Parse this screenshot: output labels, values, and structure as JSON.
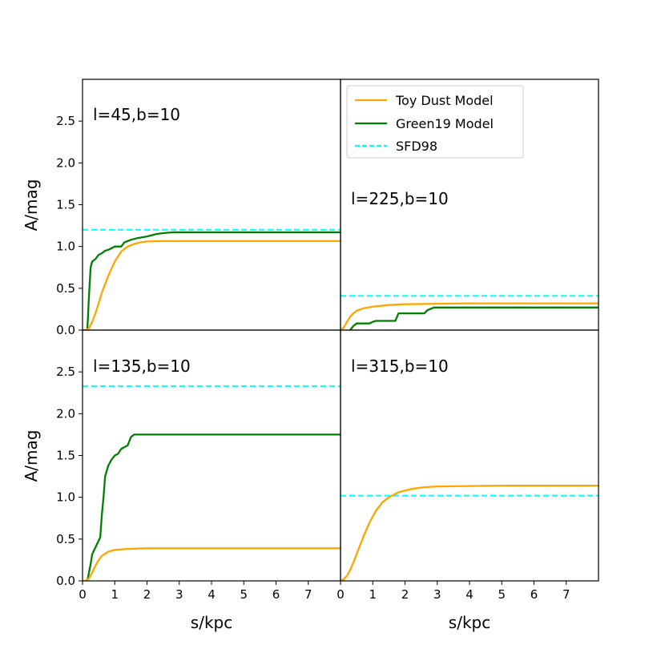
{
  "chart_data": {
    "type": "line",
    "layout": "2x2 grid, shared axes",
    "xlabel": "s/kpc",
    "ylabel": "A/mag",
    "xlim": [
      0,
      8
    ],
    "ylim": [
      0,
      3.0
    ],
    "xticks": [
      0,
      1,
      2,
      3,
      4,
      5,
      6,
      7
    ],
    "yticks": [
      0.0,
      0.5,
      1.0,
      1.5,
      2.0,
      2.5
    ],
    "legend": {
      "placement": "upper-left of top-right panel",
      "entries": [
        {
          "label": "Toy Dust Model",
          "color": "#ffa500",
          "style": "solid"
        },
        {
          "label": "Green19 Model",
          "color": "#008000",
          "style": "solid"
        },
        {
          "label": "SFD98",
          "color": "#00ffff",
          "style": "dashed"
        }
      ]
    },
    "panels": [
      {
        "label": "l=45,b=10",
        "sfd98": 1.2,
        "toy": {
          "x": [
            0,
            0.1,
            0.2,
            0.3,
            0.4,
            0.5,
            0.6,
            0.8,
            1.0,
            1.2,
            1.4,
            1.6,
            1.8,
            2.0,
            2.5,
            3.0,
            4.0,
            5.0,
            6.0,
            7.0,
            8.0
          ],
          "y": [
            0,
            0.0,
            0.02,
            0.1,
            0.2,
            0.32,
            0.45,
            0.65,
            0.82,
            0.94,
            1.0,
            1.03,
            1.05,
            1.06,
            1.065,
            1.065,
            1.065,
            1.065,
            1.065,
            1.065,
            1.065
          ]
        },
        "green": {
          "x": [
            0.15,
            0.2,
            0.25,
            0.3,
            0.4,
            0.5,
            0.6,
            0.7,
            0.8,
            0.9,
            1.0,
            1.2,
            1.3,
            1.5,
            1.7,
            2.0,
            2.3,
            2.5,
            2.8,
            3.0,
            8.0
          ],
          "y": [
            0.0,
            0.4,
            0.75,
            0.82,
            0.85,
            0.9,
            0.92,
            0.95,
            0.96,
            0.98,
            1.0,
            1.0,
            1.05,
            1.08,
            1.1,
            1.12,
            1.15,
            1.16,
            1.17,
            1.17,
            1.17
          ]
        }
      },
      {
        "label": "l=225,b=10",
        "sfd98": 0.41,
        "toy": {
          "x": [
            0,
            0.1,
            0.2,
            0.3,
            0.4,
            0.5,
            0.7,
            1.0,
            1.5,
            2.0,
            3.0,
            4.0,
            6.0,
            8.0
          ],
          "y": [
            0,
            0.03,
            0.1,
            0.16,
            0.2,
            0.23,
            0.26,
            0.28,
            0.3,
            0.31,
            0.315,
            0.32,
            0.32,
            0.32
          ]
        },
        "green": {
          "x": [
            0.3,
            0.4,
            0.5,
            0.9,
            1.0,
            1.1,
            1.7,
            1.8,
            2.6,
            2.7,
            2.9,
            8.0
          ],
          "y": [
            0.0,
            0.05,
            0.08,
            0.08,
            0.1,
            0.11,
            0.11,
            0.2,
            0.2,
            0.24,
            0.27,
            0.27
          ]
        }
      },
      {
        "label": "l=135,b=10",
        "sfd98": 2.33,
        "toy": {
          "x": [
            0,
            0.1,
            0.2,
            0.3,
            0.4,
            0.5,
            0.6,
            0.8,
            1.0,
            1.3,
            1.6,
            2.0,
            3.0,
            5.0,
            8.0
          ],
          "y": [
            0,
            0.0,
            0.03,
            0.1,
            0.18,
            0.25,
            0.3,
            0.35,
            0.37,
            0.38,
            0.385,
            0.39,
            0.39,
            0.39,
            0.39
          ]
        },
        "green": {
          "x": [
            0.15,
            0.25,
            0.3,
            0.5,
            0.55,
            0.6,
            0.65,
            0.7,
            0.8,
            0.9,
            1.0,
            1.1,
            1.2,
            1.3,
            1.4,
            1.5,
            1.6,
            1.7,
            2.0,
            8.0
          ],
          "y": [
            0.0,
            0.2,
            0.32,
            0.48,
            0.52,
            0.8,
            1.0,
            1.25,
            1.38,
            1.45,
            1.5,
            1.52,
            1.58,
            1.6,
            1.62,
            1.72,
            1.75,
            1.75,
            1.75,
            1.75
          ]
        }
      },
      {
        "label": "l=315,b=10",
        "sfd98": 1.02,
        "toy": {
          "x": [
            0,
            0.1,
            0.2,
            0.3,
            0.4,
            0.5,
            0.7,
            0.9,
            1.1,
            1.3,
            1.5,
            1.8,
            2.2,
            2.6,
            3.0,
            4.0,
            5.0,
            6.0,
            8.0
          ],
          "y": [
            0,
            0.02,
            0.06,
            0.13,
            0.22,
            0.32,
            0.52,
            0.7,
            0.84,
            0.94,
            1.0,
            1.06,
            1.1,
            1.12,
            1.13,
            1.135,
            1.14,
            1.14,
            1.14
          ]
        }
      }
    ]
  }
}
